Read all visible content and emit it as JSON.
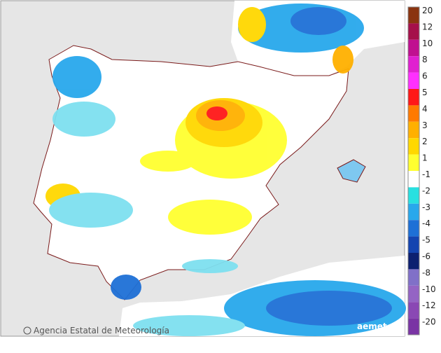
{
  "legend": {
    "items": [
      {
        "label": "20",
        "color": "#8a3410"
      },
      {
        "label": "12",
        "color": "#a5104a"
      },
      {
        "label": "10",
        "color": "#c01090"
      },
      {
        "label": "8",
        "color": "#e020d0"
      },
      {
        "label": "6",
        "color": "#ff30ff"
      },
      {
        "label": "5",
        "color": "#ff1818"
      },
      {
        "label": "4",
        "color": "#ff7a00"
      },
      {
        "label": "3",
        "color": "#ffb000"
      },
      {
        "label": "2",
        "color": "#ffd800"
      },
      {
        "label": "1",
        "color": "#ffff30"
      },
      {
        "label": "-1",
        "color": "#ffffff"
      },
      {
        "label": "-2",
        "color": "#28e0e0"
      },
      {
        "label": "-3",
        "color": "#28a8ec"
      },
      {
        "label": "-4",
        "color": "#1e70d6"
      },
      {
        "label": "-5",
        "color": "#1444b0"
      },
      {
        "label": "-6",
        "color": "#0c2070"
      },
      {
        "label": "-8",
        "color": "#8070c8"
      },
      {
        "label": "-10",
        "color": "#9464c4"
      },
      {
        "label": "-12",
        "color": "#8a48b4"
      },
      {
        "label": "-20",
        "color": "#7a34a4"
      }
    ]
  },
  "footer": {
    "agency": "Agencia Estatal de Meteorología",
    "logo": "aemet"
  }
}
